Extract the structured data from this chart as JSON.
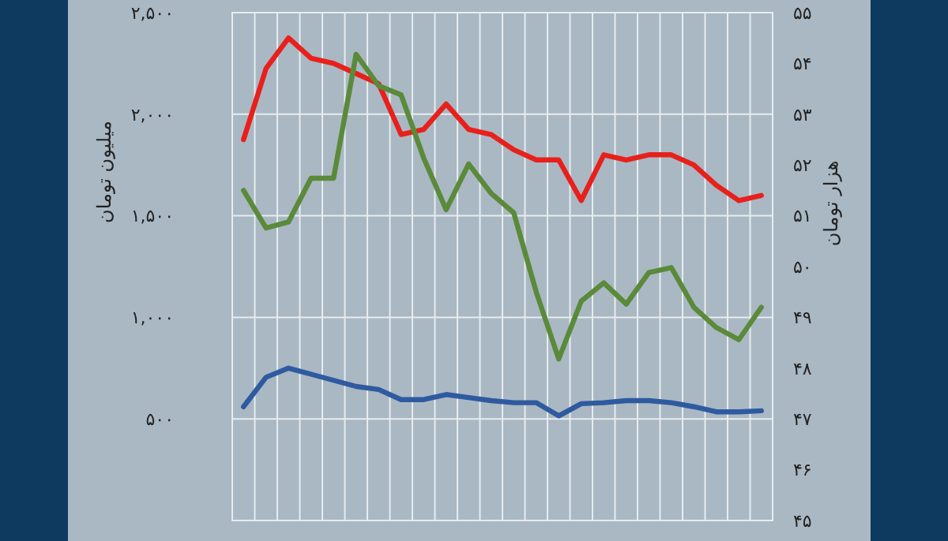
{
  "chart_data": {
    "type": "line",
    "ylabel": "میلیون تومان",
    "y2label": "هزار تومان",
    "categories": [
      null,
      null,
      null,
      null,
      null,
      null,
      null,
      null,
      null,
      null,
      null,
      null,
      null,
      null,
      null,
      null,
      null,
      null,
      null,
      null,
      null,
      null,
      null,
      null
    ],
    "series": [
      {
        "color": "#e8201c",
        "axis": "y2",
        "values": [
          52.5,
          53.9,
          54.5,
          54.1,
          54.0,
          53.8,
          53.6,
          52.6,
          52.7,
          53.2,
          52.7,
          52.6,
          52.3,
          52.1,
          52.1,
          51.3,
          52.2,
          52.1,
          52.2,
          52.2,
          52.0,
          51.6,
          51.3,
          51.4
        ]
      },
      {
        "color": "#5a8a3a",
        "values": [
          1625,
          1440,
          1470,
          1685,
          1685,
          2295,
          2140,
          2095,
          1785,
          1530,
          1755,
          1610,
          1515,
          1125,
          795,
          1080,
          1170,
          1065,
          1220,
          1245,
          1050,
          950,
          890,
          1050
        ]
      },
      {
        "color": "#2e5aa0",
        "values": [
          560,
          705,
          750,
          720,
          690,
          660,
          645,
          595,
          595,
          620,
          605,
          590,
          580,
          580,
          515,
          575,
          580,
          590,
          590,
          580,
          560,
          535,
          535,
          540
        ]
      }
    ],
    "ylim": [
      0,
      2500
    ],
    "yticks": [
      {
        "value": 500,
        "label": "۵۰۰"
      },
      {
        "value": 1000,
        "label": "۱,۰۰۰"
      },
      {
        "value": 1500,
        "label": "۱,۵۰۰"
      },
      {
        "value": 2000,
        "label": "۲,۰۰۰"
      },
      {
        "value": 2500,
        "label": "۲,۵۰۰"
      }
    ],
    "y2lim": [
      45,
      55
    ],
    "y2ticks": [
      {
        "value": 45,
        "label": "۴۵"
      },
      {
        "value": 46,
        "label": "۴۶"
      },
      {
        "value": 47,
        "label": "۴۷"
      },
      {
        "value": 48,
        "label": "۴۸"
      },
      {
        "value": 49,
        "label": "۴۹"
      },
      {
        "value": 50,
        "label": "۵۰"
      },
      {
        "value": 51,
        "label": "۵۱"
      },
      {
        "value": 52,
        "label": "۵۲"
      },
      {
        "value": 53,
        "label": "۵۳"
      },
      {
        "value": 54,
        "label": "۵۴"
      },
      {
        "value": 55,
        "label": "۵۵"
      }
    ],
    "grid": true
  }
}
